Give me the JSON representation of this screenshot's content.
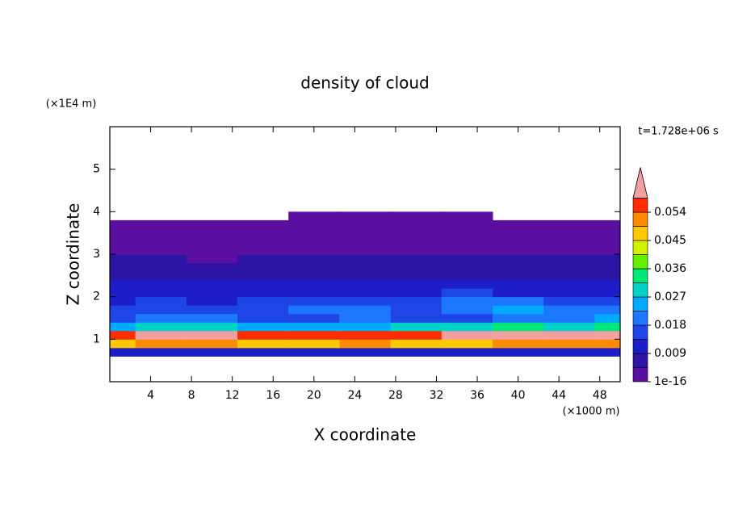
{
  "chart_data": {
    "type": "contour",
    "title": "density of cloud",
    "x_label": "X coordinate",
    "y_label": "Z coordinate",
    "x_unit": "(×1000 m)",
    "y_unit": "(×1E4 m)",
    "time_label": "t=1.728e+06 s",
    "xlim": [
      0,
      50
    ],
    "ylim": [
      0,
      6
    ],
    "xticks": [
      4,
      8,
      12,
      16,
      20,
      24,
      28,
      32,
      36,
      40,
      44,
      48
    ],
    "yticks": [
      1,
      2,
      3,
      4,
      5
    ],
    "x": [
      0,
      5,
      10,
      15,
      20,
      25,
      30,
      35,
      40,
      45,
      50
    ],
    "z": [
      0.7,
      0.9,
      1.1,
      1.3,
      1.5,
      1.7,
      1.9,
      2.1,
      2.3,
      2.5,
      2.7,
      2.9,
      3.1,
      3.3,
      3.5,
      3.7,
      3.9
    ],
    "values": [
      [
        0.012,
        0.012,
        0.011,
        0.012,
        0.012,
        0.012,
        0.012,
        0.012,
        0.013,
        0.012,
        0.012
      ],
      [
        0.048,
        0.05,
        0.05,
        0.047,
        0.048,
        0.05,
        0.049,
        0.048,
        0.05,
        0.052,
        0.052
      ],
      [
        0.058,
        0.062,
        0.06,
        0.057,
        0.058,
        0.056,
        0.058,
        0.06,
        0.062,
        0.064,
        0.064
      ],
      [
        0.025,
        0.03,
        0.028,
        0.026,
        0.024,
        0.025,
        0.027,
        0.03,
        0.032,
        0.03,
        0.033
      ],
      [
        0.016,
        0.02,
        0.018,
        0.017,
        0.016,
        0.018,
        0.015,
        0.014,
        0.02,
        0.022,
        0.024
      ],
      [
        0.014,
        0.016,
        0.015,
        0.016,
        0.02,
        0.018,
        0.016,
        0.02,
        0.024,
        0.022,
        0.02
      ],
      [
        0.012,
        0.014,
        0.013,
        0.014,
        0.015,
        0.014,
        0.016,
        0.018,
        0.02,
        0.017,
        0.016
      ],
      [
        0.01,
        0.012,
        0.012,
        0.011,
        0.012,
        0.012,
        0.013,
        0.014,
        0.013,
        0.012,
        0.012
      ],
      [
        0.009,
        0.01,
        0.009,
        0.009,
        0.01,
        0.01,
        0.011,
        0.011,
        0.01,
        0.009,
        0.01
      ],
      [
        0.007,
        0.008,
        0.007,
        0.007,
        0.008,
        0.007,
        0.008,
        0.007,
        0.007,
        0.007,
        0.008
      ],
      [
        0.006,
        0.006,
        0.006,
        0.006,
        0.006,
        0.006,
        0.006,
        0.006,
        0.006,
        0.006,
        0.006
      ],
      [
        0.005,
        0.005,
        0.004,
        0.005,
        0.005,
        0.005,
        0.005,
        0.005,
        0.005,
        0.005,
        0.005
      ],
      [
        0.004,
        0.004,
        0.004,
        0.004,
        0.004,
        0.004,
        0.004,
        0.004,
        0.004,
        0.004,
        0.004
      ],
      [
        0.003,
        0.003,
        0.003,
        0.003,
        0.003,
        0.003,
        0.003,
        0.003,
        0.003,
        0.003,
        0.003
      ],
      [
        0.002,
        0.002,
        0.002,
        0.002,
        0.002,
        0.002,
        0.002,
        0.002,
        0.002,
        0.002,
        0.002
      ],
      [
        0.0005,
        0.0005,
        0.0005,
        0.0005,
        0.0005,
        0.0005,
        0.0005,
        0.0005,
        0.0005,
        0.0005,
        0.0005
      ],
      [
        0,
        0,
        0,
        0,
        0.0005,
        0.0005,
        0.0005,
        0.0005,
        0,
        0,
        0
      ]
    ],
    "levels": [
      1e-16,
      0.0045,
      0.009,
      0.0135,
      0.018,
      0.0225,
      0.027,
      0.0315,
      0.036,
      0.0405,
      0.045,
      0.0495,
      0.054,
      0.0585
    ],
    "colors": [
      "#5a0fa0",
      "#2d14a5",
      "#1e1ec8",
      "#1e46e6",
      "#1e78ff",
      "#00aaff",
      "#00d2c8",
      "#00e678",
      "#64f000",
      "#d2f000",
      "#ffc800",
      "#ff8c00",
      "#ff2d00"
    ],
    "over_color": "#f0a0a0",
    "colorbar_ticks": [
      1e-16,
      0.009,
      0.018,
      0.027,
      0.036,
      0.045,
      0.054
    ]
  }
}
